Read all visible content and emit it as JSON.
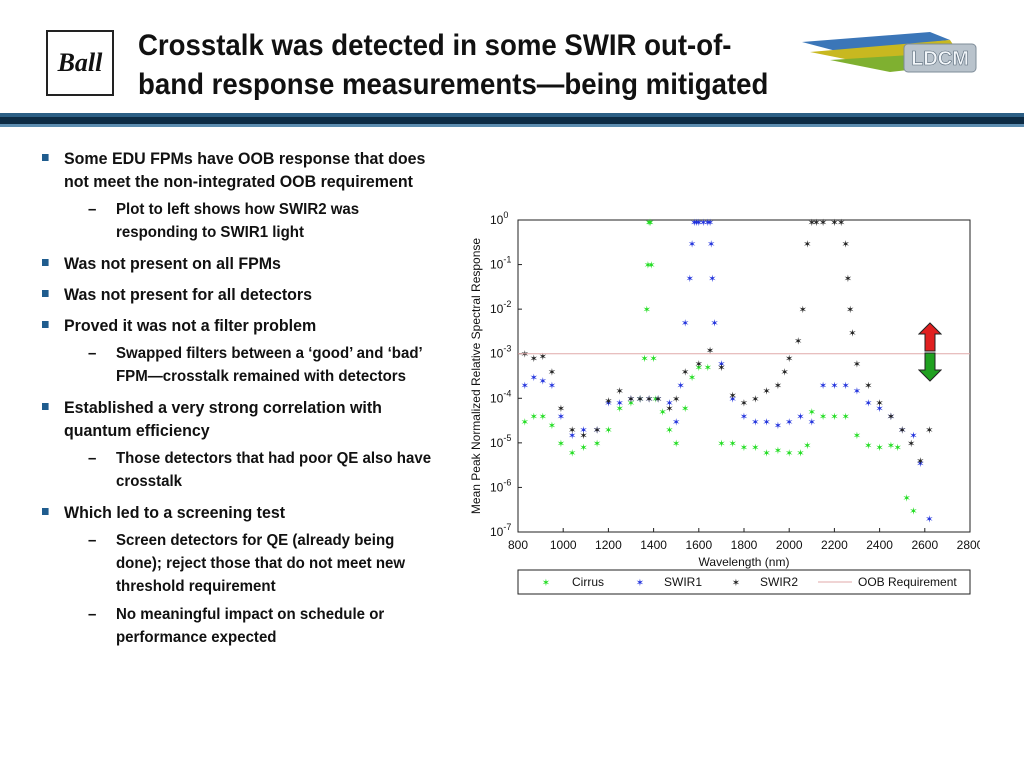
{
  "slide": {
    "logo_text": "Ball",
    "title_lines": [
      "Crosstalk was detected in some SWIR out-of-",
      "band response measurements—being mitigated"
    ],
    "ldcm_logo_text": "LDCM",
    "colors": {
      "header_band": "#0d2b44",
      "bullet": "#1f5c8e",
      "arrow_up": "#e02020",
      "arrow_down": "#20a020"
    }
  },
  "bullets": [
    {
      "text": "Some EDU FPMs have OOB response that does not meet the non-integrated OOB requirement",
      "sub": [
        "Plot to left shows how SWIR2 was responding to SWIR1 light"
      ]
    },
    {
      "text": "Was not present on all FPMs",
      "sub": []
    },
    {
      "text": "Was not present for all detectors",
      "sub": []
    },
    {
      "text": "Proved it was not a filter problem",
      "sub": [
        "Swapped filters between a ‘good’ and ‘bad’ FPM—crosstalk remained with detectors"
      ]
    },
    {
      "text": "Established a very strong correlation with quantum efficiency",
      "sub": [
        "Those detectors that had poor QE also have crosstalk"
      ]
    },
    {
      "text": "Which led to a screening test",
      "sub": [
        "Screen detectors for QE (already being done); reject those that do not meet new threshold requirement",
        "No meaningful impact on schedule or performance expected"
      ]
    }
  ],
  "chart_data": {
    "type": "scatter",
    "title": "",
    "xlabel": "Wavelength (nm)",
    "ylabel": "Mean Peak Normalized Relative Spectral Response",
    "xlim": [
      800,
      2800
    ],
    "ylim_log10": [
      -7,
      0
    ],
    "y_scale": "log",
    "xticks": [
      "800",
      "1000",
      "1200",
      "1400",
      "1600",
      "1800",
      "2000",
      "2200",
      "2400",
      "2600",
      "2800"
    ],
    "yticks": [
      "10^0",
      "10^-1",
      "10^-2",
      "10^-3",
      "10^-4",
      "10^-5",
      "10^-6",
      "10^-7"
    ],
    "legend_position": "below",
    "series": [
      {
        "name": "Cirrus",
        "color": "#22dd22",
        "marker": "star",
        "x": [
          830,
          870,
          910,
          950,
          990,
          1040,
          1090,
          1150,
          1200,
          1250,
          1300,
          1340,
          1360,
          1370,
          1375,
          1380,
          1385,
          1390,
          1400,
          1410,
          1440,
          1470,
          1500,
          1540,
          1570,
          1600,
          1640,
          1700,
          1750,
          1800,
          1850,
          1900,
          1950,
          2000,
          2050,
          2080,
          2100,
          2150,
          2200,
          2250,
          2300,
          2350,
          2400,
          2450,
          2480,
          2520,
          2550
        ],
        "y": [
          3e-05,
          4e-05,
          4e-05,
          2.5e-05,
          1e-05,
          6e-06,
          8e-06,
          1e-05,
          2e-05,
          6e-05,
          8e-05,
          0.0001,
          0.0008,
          0.01,
          0.1,
          0.9,
          0.9,
          0.1,
          0.0008,
          0.0001,
          5e-05,
          2e-05,
          1e-05,
          6e-05,
          0.0003,
          0.0005,
          0.0005,
          1e-05,
          1e-05,
          8e-06,
          8e-06,
          6e-06,
          7e-06,
          6e-06,
          6e-06,
          9e-06,
          5e-05,
          4e-05,
          4e-05,
          4e-05,
          1.5e-05,
          9e-06,
          8e-06,
          9e-06,
          8e-06,
          6e-07,
          3e-07
        ]
      },
      {
        "name": "SWIR1",
        "color": "#2233dd",
        "marker": "star",
        "x": [
          830,
          870,
          910,
          950,
          990,
          1040,
          1090,
          1150,
          1200,
          1250,
          1300,
          1340,
          1380,
          1420,
          1470,
          1500,
          1520,
          1540,
          1560,
          1570,
          1580,
          1590,
          1600,
          1620,
          1640,
          1650,
          1655,
          1660,
          1670,
          1700,
          1750,
          1800,
          1850,
          1900,
          1950,
          2000,
          2050,
          2100,
          2150,
          2200,
          2250,
          2300,
          2350,
          2400,
          2450,
          2500,
          2550,
          2580,
          2620
        ],
        "y": [
          0.0002,
          0.0003,
          0.00025,
          0.0002,
          4e-05,
          1.5e-05,
          2e-05,
          2e-05,
          8e-05,
          8e-05,
          0.0001,
          0.0001,
          0.0001,
          0.0001,
          8e-05,
          3e-05,
          0.0002,
          0.005,
          0.05,
          0.3,
          0.9,
          0.9,
          0.9,
          0.9,
          0.9,
          0.9,
          0.3,
          0.05,
          0.005,
          0.0006,
          0.0001,
          4e-05,
          3e-05,
          3e-05,
          2.5e-05,
          3e-05,
          4e-05,
          3e-05,
          0.0002,
          0.0002,
          0.0002,
          0.00015,
          8e-05,
          6e-05,
          4e-05,
          2e-05,
          1.5e-05,
          3.5e-06,
          2e-07
        ]
      },
      {
        "name": "SWIR2",
        "color": "#222222",
        "marker": "star",
        "x": [
          830,
          870,
          910,
          950,
          990,
          1040,
          1090,
          1150,
          1200,
          1250,
          1300,
          1340,
          1380,
          1420,
          1470,
          1500,
          1540,
          1600,
          1650,
          1700,
          1750,
          1800,
          1850,
          1900,
          1950,
          1980,
          2000,
          2040,
          2060,
          2080,
          2100,
          2120,
          2150,
          2200,
          2230,
          2250,
          2260,
          2270,
          2280,
          2300,
          2350,
          2400,
          2450,
          2500,
          2540,
          2580,
          2620
        ],
        "y": [
          0.001,
          0.0008,
          0.0009,
          0.0004,
          6e-05,
          2e-05,
          1.5e-05,
          2e-05,
          9e-05,
          0.00015,
          0.0001,
          0.0001,
          0.0001,
          0.0001,
          6e-05,
          0.0001,
          0.0004,
          0.0006,
          0.0012,
          0.0005,
          0.00012,
          8e-05,
          0.0001,
          0.00015,
          0.0002,
          0.0004,
          0.0008,
          0.002,
          0.01,
          0.3,
          0.9,
          0.9,
          0.9,
          0.9,
          0.9,
          0.3,
          0.05,
          0.01,
          0.003,
          0.0006,
          0.0002,
          8e-05,
          4e-05,
          2e-05,
          1e-05,
          4e-06,
          2e-05
        ]
      },
      {
        "name": "OOB Requirement",
        "color": "#e0aaaa",
        "marker": "line",
        "x": [
          800,
          2800
        ],
        "y": [
          0.001,
          0.001
        ]
      }
    ]
  }
}
